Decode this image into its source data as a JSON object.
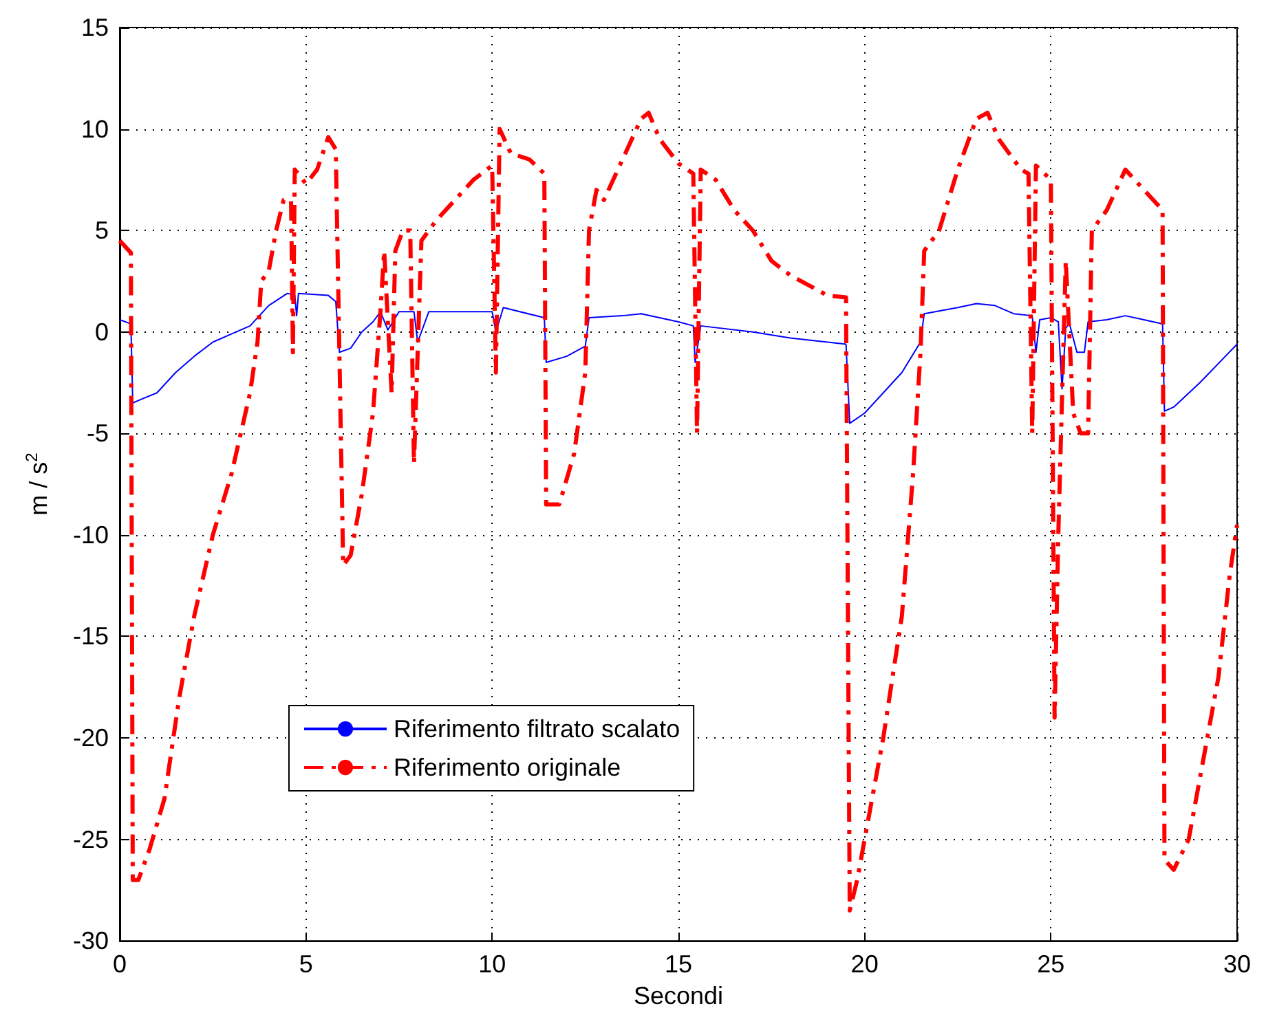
{
  "chart_data": {
    "type": "line",
    "xlabel": "Secondi",
    "ylabel": "m / s$^{2}$",
    "xlim": [
      0,
      30
    ],
    "ylim": [
      -30,
      15
    ],
    "xticks": [
      0,
      5,
      10,
      15,
      20,
      25,
      30
    ],
    "yticks": [
      -30,
      -25,
      -20,
      -15,
      -10,
      -5,
      0,
      5,
      10,
      15
    ],
    "grid": true,
    "legend": "bottom left",
    "marker": "none",
    "series": [
      {
        "name": "Riferimento filtrato scalato",
        "color": "#0000ff",
        "line_style": "solid",
        "x": [
          0,
          0.3,
          0.35,
          0.6,
          1,
          1.5,
          2,
          2.5,
          3,
          3.5,
          4,
          4.5,
          4.7,
          4.75,
          4.8,
          5.6,
          5.8,
          5.9,
          6.2,
          6.5,
          6.8,
          7.0,
          7.2,
          7.5,
          7.9,
          8.0,
          8.3,
          10,
          10.1,
          10.3,
          11.4,
          11.45,
          12,
          12.5,
          12.6,
          13.5,
          14,
          15,
          15.4,
          15.45,
          15.6,
          17,
          18,
          19.5,
          19.6,
          20,
          20.5,
          21,
          21.5,
          21.6,
          22.5,
          23,
          23.5,
          24,
          24.5,
          24.6,
          24.7,
          25,
          25.2,
          25.3,
          25.4,
          25.5,
          25.7,
          25.9,
          26.0,
          26.5,
          27,
          27.5,
          28,
          28.05,
          28.3,
          29,
          30
        ],
        "values": [
          0.6,
          0.4,
          -3.5,
          -3.3,
          -3,
          -2,
          -1.2,
          -0.5,
          -0.1,
          0.3,
          1.3,
          1.9,
          1.8,
          0.8,
          1.9,
          1.8,
          1.5,
          -1,
          -0.8,
          0,
          0.5,
          1,
          0.1,
          1,
          1,
          -0.5,
          1,
          1,
          0,
          1.2,
          0.7,
          -1.5,
          -1.2,
          -0.7,
          0.7,
          0.8,
          0.9,
          0.5,
          0.3,
          -1.5,
          0.3,
          0,
          -0.3,
          -0.6,
          -4.5,
          -4,
          -3,
          -2,
          -0.5,
          0.9,
          1.2,
          1.4,
          1.3,
          0.9,
          0.8,
          -1,
          0.6,
          0.7,
          0.5,
          -2.8,
          0.2,
          0.4,
          -1,
          -1,
          0.5,
          0.6,
          0.8,
          0.6,
          0.4,
          -3.9,
          -3.7,
          -2.5,
          -0.6
        ]
      },
      {
        "name": "Riferimento originale",
        "color": "#ff0000",
        "line_style": "dashdot",
        "x": [
          0,
          0.3,
          0.35,
          0.5,
          0.8,
          1.2,
          1.6,
          2.0,
          2.5,
          3.0,
          3.5,
          3.7,
          3.8,
          4.0,
          4.2,
          4.4,
          4.6,
          4.65,
          4.7,
          5.0,
          5.3,
          5.6,
          5.8,
          6.0,
          6.2,
          6.5,
          6.8,
          7.0,
          7.1,
          7.3,
          7.4,
          7.6,
          7.8,
          7.9,
          8.1,
          8.5,
          9.0,
          9.5,
          10.0,
          10.1,
          10.2,
          10.5,
          11.0,
          11.4,
          11.45,
          11.8,
          12.2,
          12.5,
          12.6,
          12.8,
          13.0,
          13.5,
          14.0,
          14.2,
          14.5,
          15.0,
          15.4,
          15.5,
          15.6,
          16,
          16.5,
          17,
          17.5,
          18,
          19,
          19.5,
          19.6,
          19.8,
          20,
          20.5,
          21,
          21.3,
          21.5,
          21.6,
          22,
          22.5,
          23,
          23.3,
          23.6,
          24.2,
          24.4,
          24.5,
          24.6,
          25,
          25.1,
          25.2,
          25.4,
          25.6,
          25.8,
          26.0,
          26.1,
          26.5,
          27,
          27.5,
          28,
          28.05,
          28.3,
          28.7,
          29,
          29.5,
          29.8,
          30
        ],
        "values": [
          4.5,
          3.9,
          -27,
          -27,
          -25.5,
          -23,
          -18,
          -14,
          -10,
          -7,
          -3,
          -0.5,
          2.5,
          3,
          5,
          6.5,
          6.5,
          -1,
          8,
          7.3,
          8,
          9.6,
          9,
          -11.5,
          -11,
          -8,
          -4,
          1,
          4,
          -3,
          4,
          5,
          5,
          -6.5,
          4.5,
          5.5,
          6.5,
          7.5,
          8.2,
          -2,
          10,
          8.8,
          8.5,
          7.8,
          -8.5,
          -8.5,
          -6,
          -2,
          5,
          7,
          6.5,
          8.5,
          10.5,
          10.8,
          9.5,
          8.3,
          7.8,
          -5,
          8,
          7.5,
          6,
          5,
          3.5,
          2.8,
          1.8,
          1.7,
          -28.5,
          -27,
          -25,
          -20,
          -14,
          -7,
          -1,
          4,
          5,
          8,
          10.5,
          10.8,
          9.5,
          8,
          7.8,
          -5,
          8.2,
          7.5,
          -19,
          -10,
          3.5,
          -4,
          -5,
          -5,
          5,
          6,
          8,
          7,
          6,
          -26,
          -26.5,
          -25,
          -22,
          -17,
          -12,
          -9.5
        ]
      }
    ]
  }
}
